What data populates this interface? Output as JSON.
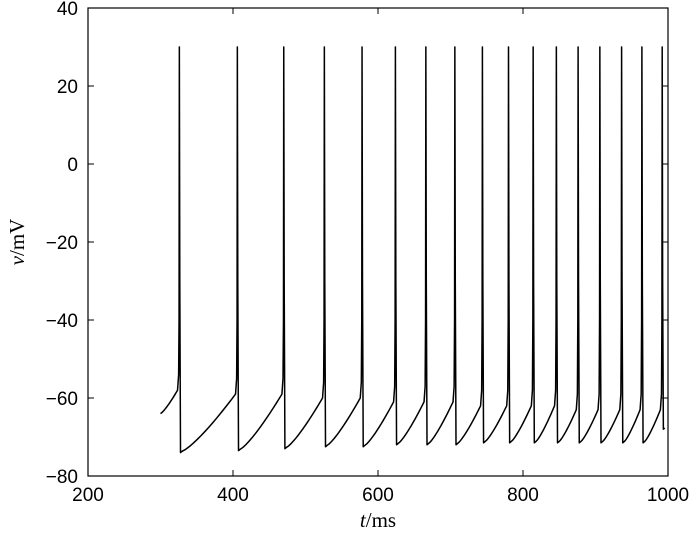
{
  "chart_data": {
    "type": "line",
    "title": "",
    "xlabel": {
      "var": "t",
      "unit": "/ms"
    },
    "ylabel": {
      "var": "v",
      "unit": "/mV"
    },
    "xlim": [
      200,
      1000
    ],
    "ylim": [
      -80,
      40
    ],
    "xticks": [
      200,
      400,
      600,
      800,
      1000
    ],
    "yticks": [
      -80,
      -60,
      -40,
      -20,
      0,
      20,
      40
    ],
    "xtick_labels": [
      "200",
      "400",
      "600",
      "800",
      "1000"
    ],
    "ytick_labels": [
      "−80",
      "−60",
      "−40",
      "−20",
      "0",
      "20",
      "40"
    ],
    "grid": false,
    "legend": "none",
    "series": [
      {
        "color": "#000000",
        "start": {
          "t": 300,
          "v": -64
        },
        "spike_peak_v": 30,
        "spike_times": [
          326,
          406,
          470,
          526,
          578,
          624,
          666,
          706,
          744,
          780,
          814,
          846,
          876,
          906,
          936,
          964,
          992
        ],
        "trough_v": [
          -74,
          -73.5,
          -73,
          -72.5,
          -72.5,
          -72,
          -72,
          -72,
          -71.5,
          -71.5,
          -71.5,
          -71.5,
          -71.5,
          -71.5,
          -71.5,
          -71.5,
          -68
        ],
        "pre_spike_v": [
          -58,
          -59,
          -59,
          -60,
          -60,
          -61,
          -61,
          -61,
          -62,
          -62,
          -62,
          -62,
          -63,
          -63,
          -63,
          -63,
          -63
        ]
      }
    ]
  }
}
